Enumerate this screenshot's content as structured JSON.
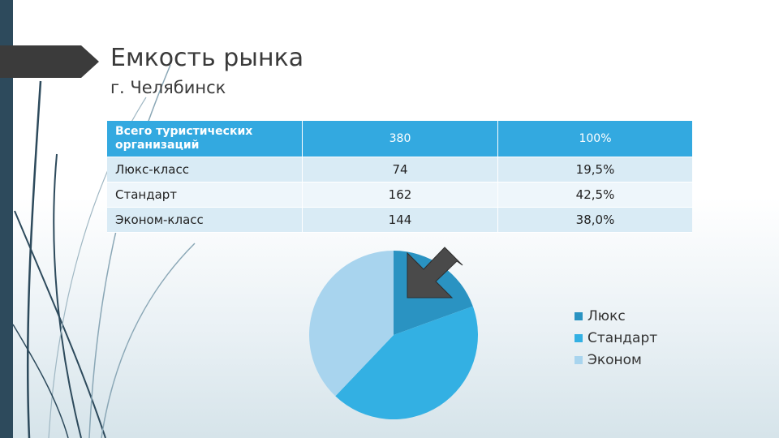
{
  "slide": {
    "title": "Емкость рынка",
    "subtitle": "г. Челябинск"
  },
  "table": {
    "header": {
      "category": "Всего туристических организаций",
      "count": "380",
      "share": "100%"
    },
    "rows": [
      {
        "category": "Люкс-класс",
        "count": "74",
        "share": "19,5%"
      },
      {
        "category": "Стандарт",
        "count": "162",
        "share": "42,5%"
      },
      {
        "category": "Эконом-класс",
        "count": "144",
        "share": "38,0%"
      }
    ]
  },
  "chart_data": {
    "type": "pie",
    "categories": [
      "Люкс",
      "Стандарт",
      "Эконом"
    ],
    "values": [
      74,
      162,
      144
    ],
    "colors": [
      "#2a93c2",
      "#33b0e3",
      "#a8d4ee"
    ],
    "legend_position": "right",
    "annotation": "arrow pointing at Люкс slice"
  },
  "colors": {
    "header_fill": "#33a9e0",
    "row_fill": "#d9ebf5",
    "row_alt_fill": "#eef6fb",
    "left_bar": "#2d4a5c",
    "title_tab": "#3b3b3b"
  }
}
